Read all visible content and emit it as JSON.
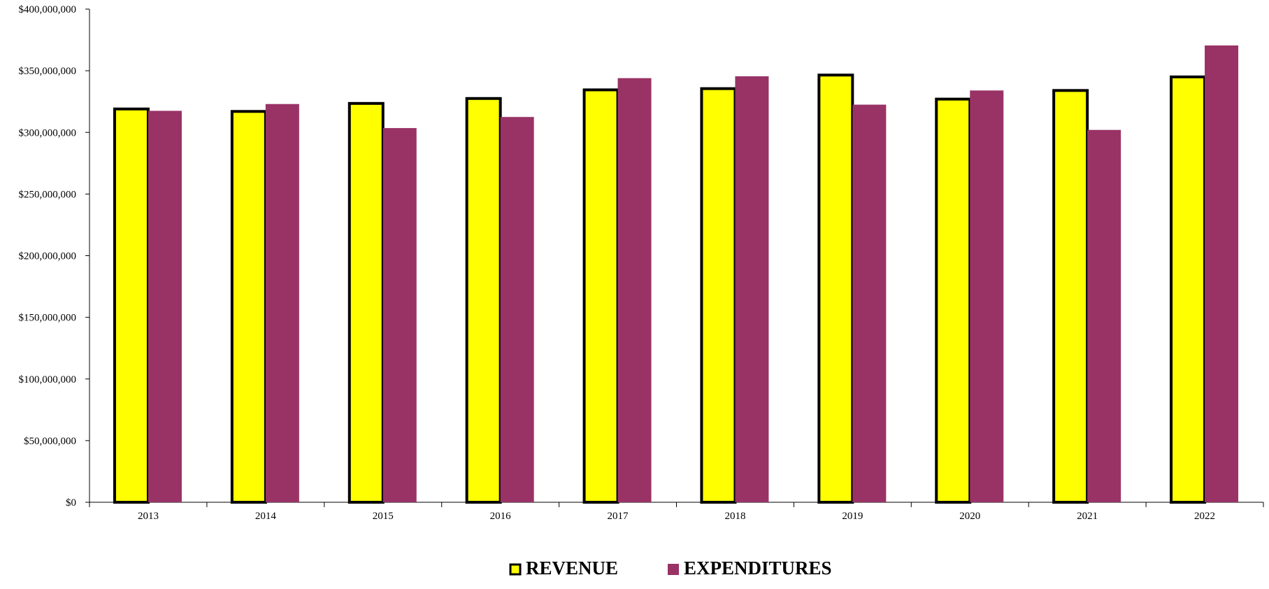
{
  "chart_data": {
    "type": "bar",
    "title": "",
    "xlabel": "",
    "ylabel": "",
    "categories": [
      "2013",
      "2014",
      "2015",
      "2016",
      "2017",
      "2018",
      "2019",
      "2020",
      "2021",
      "2022"
    ],
    "series": [
      {
        "name": "REVENUE",
        "color": "#ffff00",
        "outline": "#000000",
        "values": [
          319000000,
          317000000,
          323500000,
          327500000,
          334500000,
          335500000,
          346500000,
          327000000,
          334000000,
          345000000
        ]
      },
      {
        "name": "EXPENDITURES",
        "color": "#993366",
        "outline": "none",
        "values": [
          317500000,
          323000000,
          303500000,
          312500000,
          344000000,
          345500000,
          322500000,
          334000000,
          302000000,
          370500000
        ]
      }
    ],
    "ylim": [
      0,
      400000000
    ],
    "y_ticks": [
      0,
      50000000,
      100000000,
      150000000,
      200000000,
      250000000,
      300000000,
      350000000,
      400000000
    ],
    "y_tick_labels": [
      "$0",
      "$50,000,000",
      "$100,000,000",
      "$150,000,000",
      "$200,000,000",
      "$250,000,000",
      "$300,000,000",
      "$350,000,000",
      "$400,000,000"
    ],
    "grid": false,
    "legend": {
      "position": "bottom-center",
      "entries": [
        "REVENUE",
        "EXPENDITURES"
      ]
    }
  }
}
